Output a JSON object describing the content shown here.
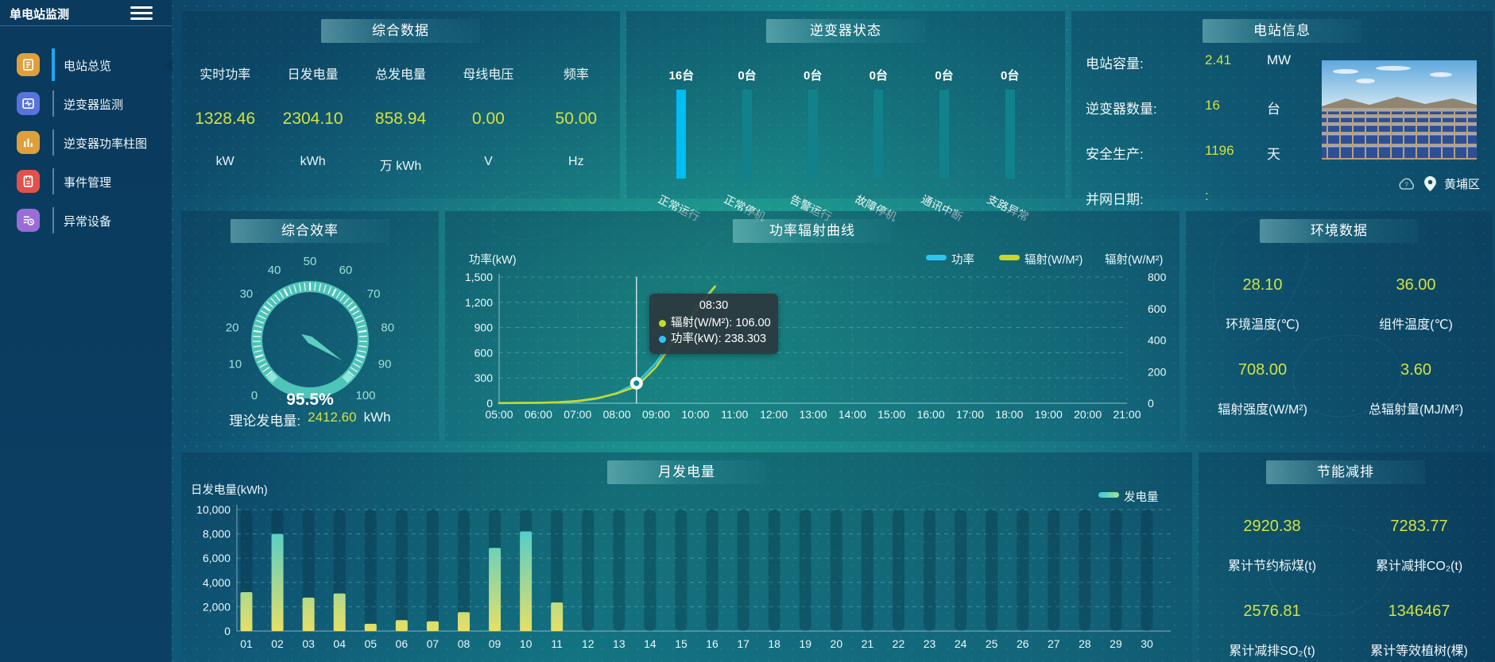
{
  "colors": {
    "accent_yellow": "#d2e23f",
    "accent_cyan": "#00bdf2",
    "teal_bar": "#11828c",
    "gauge_ring": "#4fc4b9",
    "line_power": "#2cc5f0",
    "line_radiation": "#c9d827",
    "bar_top": "#37cade",
    "bar_bottom": "#e7e065",
    "active_menu": "#23a7ee"
  },
  "sidebar": {
    "title": "单电站监测",
    "items": [
      {
        "label": "电站总览",
        "icon": "station-overview",
        "icon_color": "#E09F3A",
        "active": true
      },
      {
        "label": "逆变器监测",
        "icon": "inverter-monitor",
        "icon_color": "#5873DB",
        "active": false
      },
      {
        "label": "逆变器功率柱图",
        "icon": "inverter-power-bars",
        "icon_color": "#E09F3A",
        "active": false
      },
      {
        "label": "事件管理",
        "icon": "event-management",
        "icon_color": "#E0524B",
        "active": false
      },
      {
        "label": "异常设备",
        "icon": "abnormal-devices",
        "icon_color": "#9A6CD9",
        "active": false
      }
    ]
  },
  "panels": {
    "summary": {
      "title": "综合数据",
      "stats": [
        {
          "label": "实时功率",
          "value": "1328.46",
          "unit": "kW"
        },
        {
          "label": "日发电量",
          "value": "2304.10",
          "unit": "kWh"
        },
        {
          "label": "总发电量",
          "value": "858.94",
          "unit": "万 kWh"
        },
        {
          "label": "母线电压",
          "value": "0.00",
          "unit": "V"
        },
        {
          "label": "频率",
          "value": "50.00",
          "unit": "Hz"
        }
      ]
    },
    "inverter_status": {
      "title": "逆变器状态",
      "unit": "台",
      "items": [
        {
          "label": "正常运行",
          "count": "16"
        },
        {
          "label": "正常停机",
          "count": "0"
        },
        {
          "label": "告警运行",
          "count": "0"
        },
        {
          "label": "故障停机",
          "count": "0"
        },
        {
          "label": "通讯中断",
          "count": "0"
        },
        {
          "label": "支路异常",
          "count": "0"
        }
      ]
    },
    "station_info": {
      "title": "电站信息",
      "rows": [
        {
          "label": "电站容量:",
          "value": "2.41",
          "unit": "MW"
        },
        {
          "label": "逆变器数量:",
          "value": "16",
          "unit": "台"
        },
        {
          "label": "安全生产:",
          "value": "1196",
          "unit": "天"
        },
        {
          "label": "并网日期:",
          "value": ":",
          "unit": ""
        }
      ],
      "location": "黄埔区"
    },
    "efficiency": {
      "title": "综合效率",
      "gauge_label": "95.5%",
      "footer_label": "理论发电量:",
      "footer_value": "2412.60",
      "footer_unit": "kWh"
    },
    "power_curve": {
      "title": "功率辐射曲线",
      "y_left_label": "功率(kW)",
      "y_right_label": "辐射(W/M²)",
      "legend": [
        "功率",
        "辐射(W/M²)"
      ],
      "tooltip": {
        "time": "08:30",
        "rows": [
          {
            "label": "辐射(W/M²):",
            "value": "106.00",
            "color": "#c9d827"
          },
          {
            "label": "功率(kW):",
            "value": "238.303",
            "color": "#2cc5f0"
          }
        ]
      }
    },
    "environment": {
      "title": "环境数据",
      "stats": [
        {
          "value": "28.10",
          "label": "环境温度(℃)"
        },
        {
          "value": "36.00",
          "label": "组件温度(℃)"
        },
        {
          "value": "708.00",
          "label": "辐射强度(W/M²)"
        },
        {
          "value": "3.60",
          "label": "总辐射量(MJ/M²)"
        }
      ]
    },
    "monthly": {
      "title": "月发电量",
      "y_label": "日发电量(kWh)",
      "legend": "发电量"
    },
    "energy_saving": {
      "title": "节能减排",
      "stats": [
        {
          "value": "2920.38",
          "label": "累计节约标煤(t)"
        },
        {
          "value": "7283.77",
          "label": "累计减排CO₂(t)"
        },
        {
          "value": "2576.81",
          "label": "累计减排SO₂(t)"
        },
        {
          "value": "1346467",
          "label": "累计等效植树(棵)"
        }
      ]
    }
  },
  "chart_data": [
    {
      "id": "inverter_status",
      "type": "bar",
      "title": "逆变器状态",
      "categories": [
        "正常运行",
        "正常停机",
        "告警运行",
        "故障停机",
        "通讯中断",
        "支路异常"
      ],
      "values": [
        16,
        0,
        0,
        0,
        0,
        0
      ],
      "unit": "台"
    },
    {
      "id": "efficiency_gauge",
      "type": "gauge",
      "title": "综合效率",
      "value": 95.5,
      "min": 0,
      "max": 100,
      "ticks": [
        0,
        10,
        20,
        30,
        40,
        50,
        60,
        70,
        80,
        90,
        100
      ],
      "unit": "%"
    },
    {
      "id": "power_radiation",
      "type": "line",
      "title": "功率辐射曲线",
      "x": [
        "05:00",
        "05:30",
        "06:00",
        "06:30",
        "07:00",
        "07:30",
        "08:00",
        "08:30",
        "09:00",
        "09:30",
        "10:00",
        "10:30"
      ],
      "series": [
        {
          "name": "功率",
          "axis": "left",
          "color": "#2cc5f0",
          "values": [
            2,
            3,
            5,
            10,
            22,
            55,
            120,
            238.303,
            480,
            820,
            1130,
            1390
          ]
        },
        {
          "name": "辐射(W/M²)",
          "axis": "right",
          "color": "#c9d827",
          "values": [
            1,
            2,
            3,
            6,
            14,
            32,
            62,
            106,
            230,
            410,
            580,
            740
          ]
        }
      ],
      "x_ticks": [
        "05:00",
        "06:00",
        "07:00",
        "08:00",
        "09:00",
        "10:00",
        "11:00",
        "12:00",
        "13:00",
        "14:00",
        "15:00",
        "16:00",
        "17:00",
        "18:00",
        "19:00",
        "20:00",
        "21:00"
      ],
      "ylim_left": [
        0,
        1500
      ],
      "yticks_left": [
        0,
        300,
        600,
        900,
        1200,
        1500
      ],
      "ylim_right": [
        0,
        800
      ],
      "yticks_right": [
        0,
        200,
        400,
        600,
        800
      ],
      "ylabel_left": "功率(kW)",
      "ylabel_right": "辐射(W/M²)",
      "legend_position": "top-right",
      "highlight": {
        "time": "08:30",
        "power_kw": 238.303,
        "radiation_wm2": 106.0
      }
    },
    {
      "id": "monthly_generation",
      "type": "bar",
      "title": "月发电量",
      "ylabel": "日发电量(kWh)",
      "legend": "发电量",
      "categories": [
        "01",
        "02",
        "03",
        "04",
        "05",
        "06",
        "07",
        "08",
        "09",
        "10",
        "11",
        "12",
        "13",
        "14",
        "15",
        "16",
        "17",
        "18",
        "19",
        "20",
        "21",
        "22",
        "23",
        "24",
        "25",
        "26",
        "27",
        "28",
        "29",
        "30"
      ],
      "values": [
        3200,
        8000,
        2750,
        3100,
        600,
        900,
        800,
        1550,
        6850,
        8200,
        2350,
        0,
        0,
        0,
        0,
        0,
        0,
        0,
        0,
        0,
        0,
        0,
        0,
        0,
        0,
        0,
        0,
        0,
        0,
        0
      ],
      "ylim": [
        0,
        10000
      ],
      "yticks": [
        0,
        2000,
        4000,
        6000,
        8000,
        10000
      ]
    }
  ]
}
